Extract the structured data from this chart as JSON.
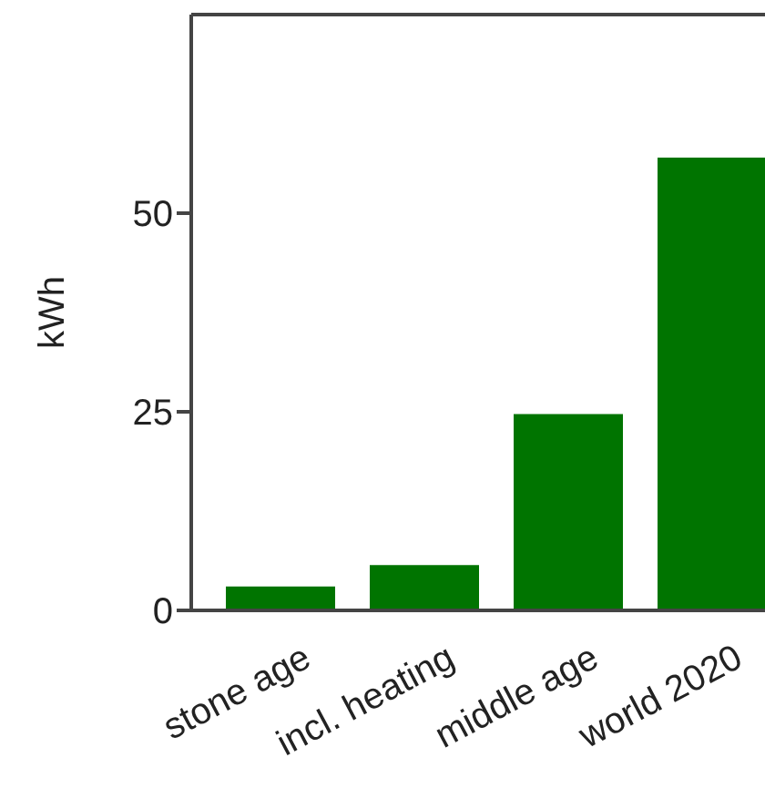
{
  "chart_data": {
    "type": "bar",
    "ylabel": "kWh",
    "categories": [
      "stone age",
      "incl. heating",
      "middle age",
      "world 2020"
    ],
    "values": [
      3,
      5.7,
      24.7,
      57
    ],
    "color": "#007400",
    "ylim": [
      0,
      75
    ],
    "yticks": [
      0,
      25,
      50
    ]
  }
}
